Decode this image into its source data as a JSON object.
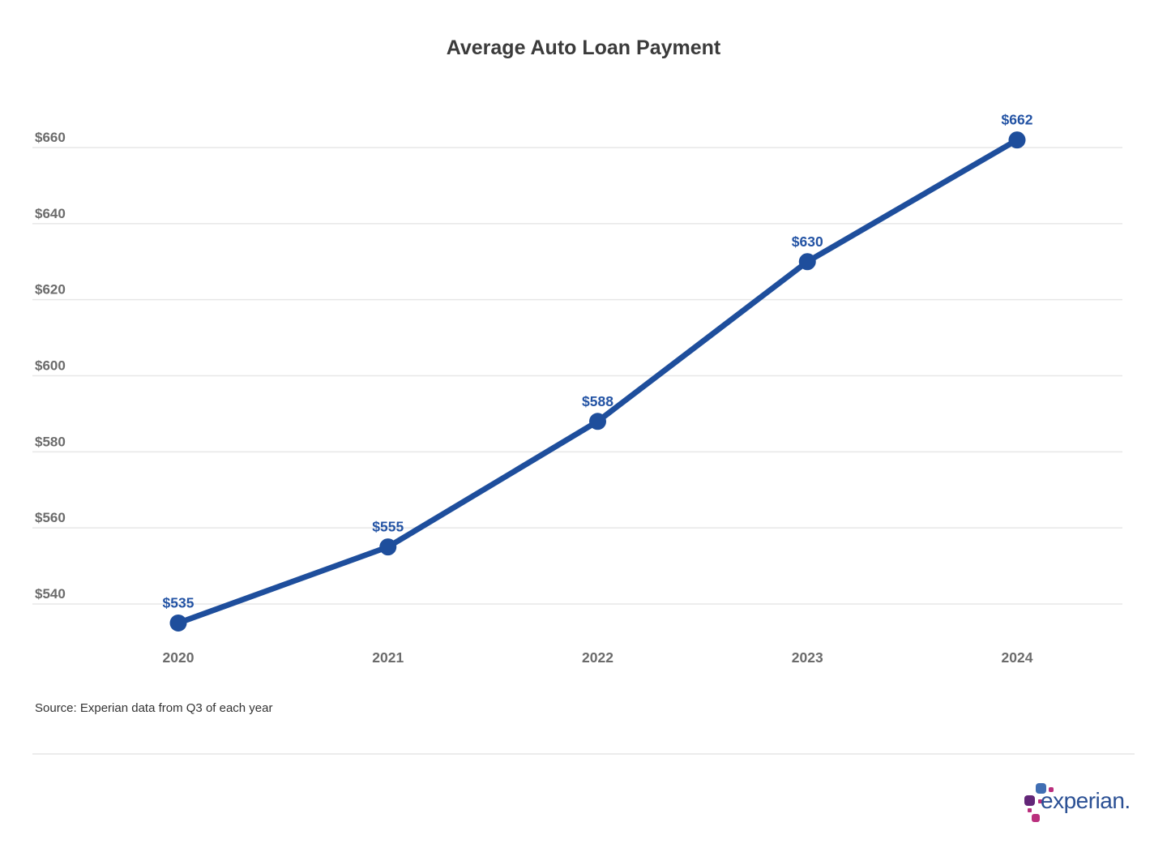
{
  "title": "Average Auto Loan Payment",
  "source_note": "Source: Experian data from Q3 of each year",
  "logo": {
    "wordmark": "experian."
  },
  "colors": {
    "line": "#1e4e9c",
    "point": "#1e4e9c",
    "data_label": "#2353a4",
    "title": "#3b3b3b",
    "tick_label": "#6b6b6b",
    "gridline": "#e7e7e7",
    "source": "#333333",
    "divider": "#ececec",
    "logo_blue": "#406eb3",
    "logo_purple": "#632678",
    "logo_magenta": "#ba2f7d",
    "logo_wordmark": "#2b5094"
  },
  "chart_data": {
    "type": "line",
    "title": "Average Auto Loan Payment",
    "categories": [
      "2020",
      "2021",
      "2022",
      "2023",
      "2024"
    ],
    "series": [
      {
        "name": "Average Auto Loan Payment",
        "values": [
          535,
          555,
          588,
          630,
          662
        ]
      }
    ],
    "point_labels": [
      "$535",
      "$555",
      "$588",
      "$630",
      "$662"
    ],
    "y_ticks": [
      540,
      560,
      580,
      600,
      620,
      640,
      660
    ],
    "y_tick_labels": [
      "$540",
      "$560",
      "$580",
      "$600",
      "$620",
      "$640",
      "$660"
    ],
    "ylim": [
      530,
      668
    ],
    "xlabel": "",
    "ylabel": "",
    "grid": "horizontal-only",
    "legend": "none",
    "annotation_note": "Source: Experian data from Q3 of each year"
  }
}
